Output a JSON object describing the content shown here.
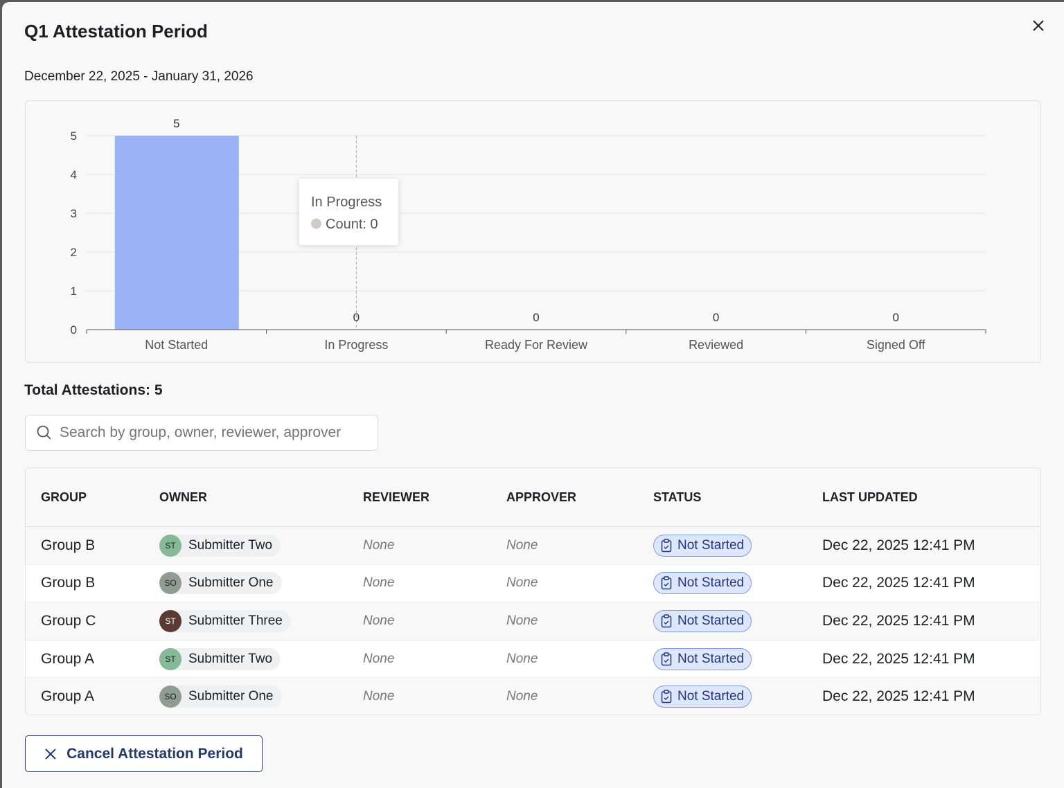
{
  "modal": {
    "title": "Q1 Attestation Period",
    "date_range": "December 22, 2025 - January 31, 2026",
    "close_icon": "close-icon"
  },
  "chart_data": {
    "type": "bar",
    "categories": [
      "Not Started",
      "In Progress",
      "Ready For Review",
      "Reviewed",
      "Signed Off"
    ],
    "values": [
      5,
      0,
      0,
      0,
      0
    ],
    "ylim": [
      0,
      5
    ],
    "yticks": [
      "0",
      "1",
      "2",
      "3",
      "4",
      "5"
    ],
    "grid": true,
    "bar_color": "#9ab2f4",
    "tooltip": {
      "title": "In Progress",
      "label": "Count: 0"
    }
  },
  "total": "Total Attestations: 5",
  "search": {
    "placeholder": "Search by group, owner, reviewer, approver"
  },
  "table": {
    "headers": [
      "GROUP",
      "OWNER",
      "REVIEWER",
      "APPROVER",
      "STATUS",
      "LAST UPDATED"
    ],
    "rows": [
      {
        "group": "Group B",
        "initials": "ST",
        "owner": "Submitter Two",
        "avatar_color": "#86b995",
        "reviewer": "None",
        "approver": "None",
        "status": "Not Started",
        "updated": "Dec 22, 2025 12:41 PM"
      },
      {
        "group": "Group B",
        "initials": "SO",
        "owner": "Submitter One",
        "avatar_color": "#8f9c91",
        "reviewer": "None",
        "approver": "None",
        "status": "Not Started",
        "updated": "Dec 22, 2025 12:41 PM"
      },
      {
        "group": "Group C",
        "initials": "ST",
        "owner": "Submitter Three",
        "avatar_color": "#5a3a33",
        "reviewer": "None",
        "approver": "None",
        "status": "Not Started",
        "updated": "Dec 22, 2025 12:41 PM"
      },
      {
        "group": "Group A",
        "initials": "ST",
        "owner": "Submitter Two",
        "avatar_color": "#86b995",
        "reviewer": "None",
        "approver": "None",
        "status": "Not Started",
        "updated": "Dec 22, 2025 12:41 PM"
      },
      {
        "group": "Group A",
        "initials": "SO",
        "owner": "Submitter One",
        "avatar_color": "#8f9c91",
        "reviewer": "None",
        "approver": "None",
        "status": "Not Started",
        "updated": "Dec 22, 2025 12:41 PM"
      }
    ]
  },
  "cancel_button": "Cancel Attestation Period"
}
